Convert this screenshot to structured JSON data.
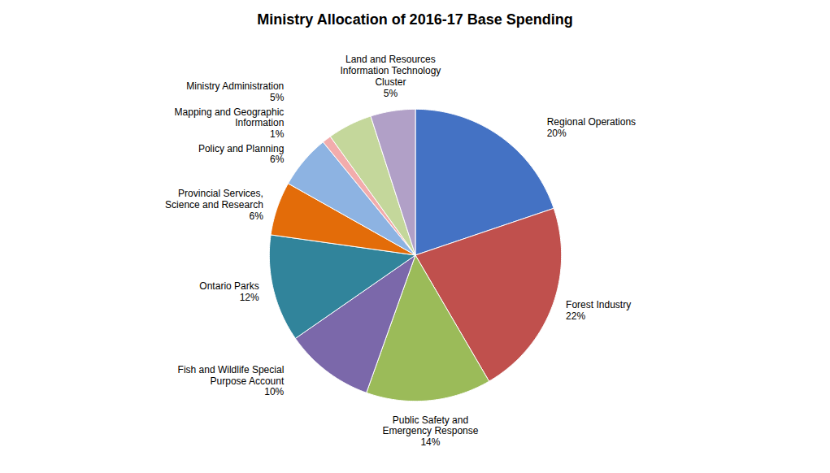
{
  "chart_data": {
    "type": "pie",
    "title": "Ministry Allocation of 2016-17 Base Spending",
    "categories": [
      "Regional Operations",
      "Forest Industry",
      "Public Safety and\nEmergency Response",
      "Fish and Wildlife Special\nPurpose Account",
      "Ontario Parks",
      "Provincial Services,\nScience and Research",
      "Policy and Planning",
      "Mapping and Geographic\nInformation",
      "Ministry Administration",
      "Land and Resources\nInformation Technology\nCluster"
    ],
    "values": [
      20,
      22,
      14,
      10,
      12,
      6,
      6,
      1,
      5,
      5
    ],
    "value_labels": [
      "20%",
      "22%",
      "14%",
      "10%",
      "12%",
      "6%",
      "6%",
      "1%",
      "5%",
      "5%"
    ],
    "colors": [
      "#4472C4",
      "#C0504D",
      "#9BBB59",
      "#7B68AA",
      "#31849B",
      "#E36C09",
      "#8DB3E2",
      "#F2ACAC",
      "#C4D79B",
      "#B1A0C7"
    ],
    "data_labels": true
  }
}
